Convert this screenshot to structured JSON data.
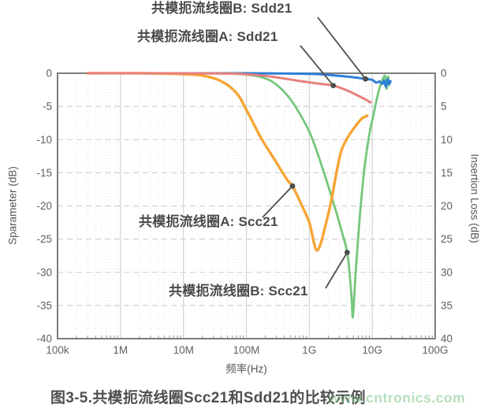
{
  "figure": {
    "caption": "图3-5.共模扼流线圈Scc21和Sdd21的比较示例",
    "watermark": "www.cntronics.com"
  },
  "chart_data": {
    "type": "line",
    "title": "图3-5.共模扼流线圈Scc21和Sdd21的比较示例",
    "grid": true,
    "x_axis": {
      "label": "频率(Hz)",
      "scale": "log",
      "min": 100000.0,
      "max": 100000000000.0,
      "ticks": [
        {
          "value": 100000.0,
          "label": "100k"
        },
        {
          "value": 1000000.0,
          "label": "1M"
        },
        {
          "value": 10000000.0,
          "label": "10M"
        },
        {
          "value": 100000000.0,
          "label": "100M"
        },
        {
          "value": 1000000000.0,
          "label": "1G"
        },
        {
          "value": 10000000000.0,
          "label": "10G"
        },
        {
          "value": 100000000000.0,
          "label": "100G"
        }
      ]
    },
    "y_axis_left": {
      "label": "Sparameter (dB)",
      "min": -40,
      "max": 0,
      "ticks": [
        0,
        -5,
        -10,
        -15,
        -20,
        -25,
        -30,
        -35,
        -40
      ]
    },
    "y_axis_right": {
      "label": "Insertion Loss (dB)",
      "ticks": [
        0,
        5,
        10,
        15,
        20,
        25,
        30,
        35,
        40
      ]
    },
    "frame_color": "#7d7d7d",
    "grid_major_color": "#d2d2d2",
    "grid_minor_color": "#e4e4e4",
    "tick_label_color": "#5f5f5f",
    "annotation_color": "#4d4d4d",
    "series": [
      {
        "id": "choke-b-scc21",
        "name": "共模扼流线圈B: Scc21",
        "color": "#74c77b",
        "width": 2.8,
        "points": [
          [
            300000.0,
            0
          ],
          [
            10000000.0,
            0
          ],
          [
            50000000.0,
            -0.05
          ],
          [
            100000000.0,
            -0.2
          ],
          [
            160000000.0,
            -0.5
          ],
          [
            250000000.0,
            -1.2
          ],
          [
            400000000.0,
            -2.8
          ],
          [
            600000000.0,
            -5.0
          ],
          [
            1000000000.0,
            -8.8
          ],
          [
            1400000000.0,
            -12.5
          ],
          [
            2000000000.0,
            -17.0
          ],
          [
            2600000000.0,
            -20.5
          ],
          [
            3200000000.0,
            -23.5
          ],
          [
            4000000000.0,
            -27.0
          ],
          [
            4400000000.0,
            -30.5
          ],
          [
            4700000000.0,
            -34.0
          ],
          [
            4900000000.0,
            -36.8
          ],
          [
            5150000000.0,
            -34.0
          ],
          [
            5500000000.0,
            -29.5
          ],
          [
            6000000000.0,
            -24.5
          ],
          [
            6700000000.0,
            -19.0
          ],
          [
            7700000000.0,
            -13.5
          ],
          [
            9000000000.0,
            -9.2
          ],
          [
            10500000000.0,
            -6.2
          ],
          [
            12000000000.0,
            -3.6
          ],
          [
            13500000000.0,
            -1.8
          ],
          [
            15000000000.0,
            -0.7
          ],
          [
            16000000000.0,
            -0.4
          ],
          [
            16500000000.0,
            -1.6
          ],
          [
            17000000000.0,
            -2.3
          ],
          [
            17800000000.0,
            -0.5
          ],
          [
            18500000000.0,
            -1.8
          ]
        ]
      },
      {
        "id": "choke-a-scc21",
        "name": "共模扼流线圈A: Scc21",
        "color": "#f7a535",
        "width": 3.4,
        "points": [
          [
            300000.0,
            0
          ],
          [
            2000000.0,
            0
          ],
          [
            8000000.0,
            -0.1
          ],
          [
            20000000.0,
            -0.35
          ],
          [
            40000000.0,
            -1.2
          ],
          [
            70000000.0,
            -3.0
          ],
          [
            100000000.0,
            -5.5
          ],
          [
            170000000.0,
            -9.7
          ],
          [
            280000000.0,
            -13.0
          ],
          [
            440000000.0,
            -16.0
          ],
          [
            540000000.0,
            -17.0
          ],
          [
            750000000.0,
            -19.8
          ],
          [
            1000000000.0,
            -22.5
          ],
          [
            1150000000.0,
            -25.0
          ],
          [
            1300000000.0,
            -26.7
          ],
          [
            1500000000.0,
            -25.8
          ],
          [
            1800000000.0,
            -23.0
          ],
          [
            2200000000.0,
            -19.5
          ],
          [
            2700000000.0,
            -15.0
          ],
          [
            3200000000.0,
            -11.8
          ],
          [
            4000000000.0,
            -9.8
          ],
          [
            5200000000.0,
            -8.2
          ],
          [
            6700000000.0,
            -6.9
          ],
          [
            8300000000.0,
            -6.4
          ]
        ]
      },
      {
        "id": "choke-b-sdd21",
        "name": "共模扼流线圈B: Sdd21",
        "color": "#2e7fd6",
        "width": 3.0,
        "points": [
          [
            300000.0,
            0
          ],
          [
            100000000.0,
            0
          ],
          [
            1000000000.0,
            -0.1
          ],
          [
            2000000000.0,
            -0.25
          ],
          [
            4000000000.0,
            -0.5
          ],
          [
            6000000000.0,
            -0.7
          ],
          [
            7800000000.0,
            -0.85
          ],
          [
            10000000000.0,
            -1.0
          ],
          [
            11500000000.0,
            -1.4
          ],
          [
            13000000000.0,
            -1.25
          ],
          [
            14500000000.0,
            -1.6
          ],
          [
            15500000000.0,
            -1.1
          ],
          [
            16500000000.0,
            -2.0
          ],
          [
            17500000000.0,
            -0.9
          ],
          [
            18500000000.0,
            -1.6
          ],
          [
            19500000000.0,
            -1.2
          ]
        ]
      },
      {
        "id": "choke-a-sdd21",
        "name": "共模扼流线圈A: Sdd21",
        "color": "#e8807d",
        "width": 3.0,
        "points": [
          [
            300000.0,
            0
          ],
          [
            1000000.0,
            0
          ],
          [
            10000000.0,
            0
          ],
          [
            50000000.0,
            -0.05
          ],
          [
            100000000.0,
            -0.15
          ],
          [
            200000000.0,
            -0.4
          ],
          [
            400000000.0,
            -0.8
          ],
          [
            800000000.0,
            -1.25
          ],
          [
            1500000000.0,
            -1.6
          ],
          [
            2400000000.0,
            -1.85
          ],
          [
            4000000000.0,
            -2.6
          ],
          [
            6000000000.0,
            -3.4
          ],
          [
            8000000000.0,
            -4.0
          ],
          [
            9400000000.0,
            -4.4
          ]
        ]
      }
    ],
    "annotations": [
      {
        "id": "b-sdd21",
        "label": "共模扼流线圈B: Sdd21",
        "leader_from": [
          403,
          22
        ],
        "dot": [
          7800000000.0,
          -0.85
        ]
      },
      {
        "id": "a-sdd21",
        "label": "共模扼流线圈A: Sdd21",
        "leader_from": [
          381,
          58
        ],
        "dot": [
          2400000000.0,
          -1.85
        ]
      },
      {
        "id": "a-scc21",
        "label": "共模扼流线圈A: Scc21",
        "leader_from": [
          333,
          276
        ],
        "dot": [
          540000000.0,
          -17.0
        ]
      },
      {
        "id": "b-scc21",
        "label": "共模扼流线圈B: Scc21",
        "leader_from": [
          413,
          366
        ],
        "dot": [
          4000000000.0,
          -27.0
        ]
      }
    ]
  }
}
